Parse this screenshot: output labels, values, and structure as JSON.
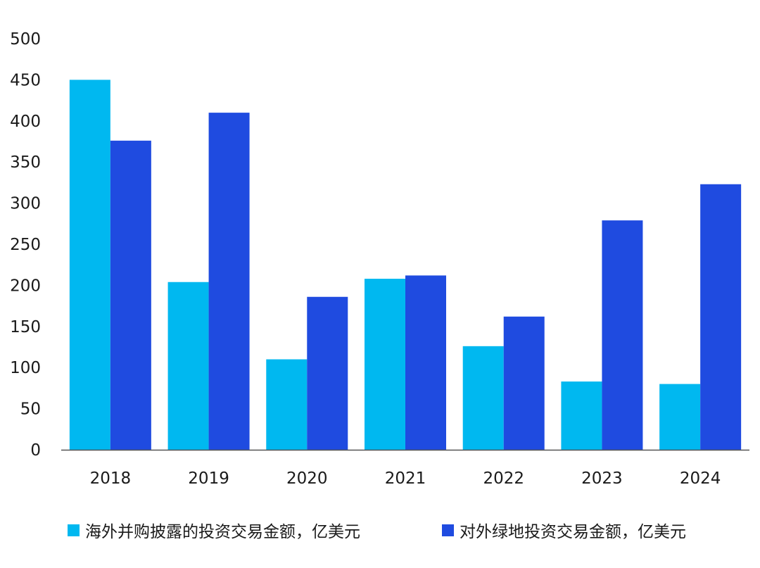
{
  "chart_data": {
    "type": "bar",
    "title": "",
    "xlabel": "",
    "ylabel": "",
    "categories": [
      "2018",
      "2019",
      "2020",
      "2021",
      "2022",
      "2023",
      "2024"
    ],
    "ylim": [
      0,
      500
    ],
    "yticks": [
      "0",
      "50",
      "100",
      "150",
      "200",
      "250",
      "300",
      "350",
      "400",
      "450",
      "500"
    ],
    "grid": false,
    "legend_position": "bottom",
    "series": [
      {
        "name": "海外并购披露的投资交易金额，亿美元",
        "color": "#00b8f0",
        "values": [
          450,
          204,
          110,
          208,
          126,
          83,
          80
        ]
      },
      {
        "name": "对外绿地投资交易金额，亿美元",
        "color": "#1f4be0",
        "values": [
          376,
          410,
          186,
          212,
          162,
          279,
          323
        ]
      }
    ]
  }
}
